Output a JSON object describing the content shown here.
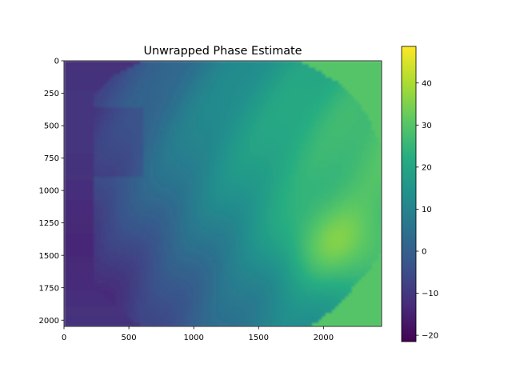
{
  "chart_data": {
    "type": "heatmap",
    "title": "Unwrapped Phase Estimate",
    "xlabel": "",
    "ylabel": "",
    "xlim": [
      0,
      2448
    ],
    "ylim": [
      2048,
      0
    ],
    "x_ticks": [
      0,
      500,
      1000,
      1500,
      2000
    ],
    "y_ticks": [
      0,
      250,
      500,
      750,
      1000,
      1250,
      1500,
      1750,
      2000
    ],
    "colormap": "viridis",
    "colorbar": {
      "range": [
        -21.5,
        48.7
      ],
      "ticks": [
        -20,
        -10,
        0,
        10,
        20,
        30,
        40
      ]
    },
    "background_value": 30,
    "grid": false
  }
}
